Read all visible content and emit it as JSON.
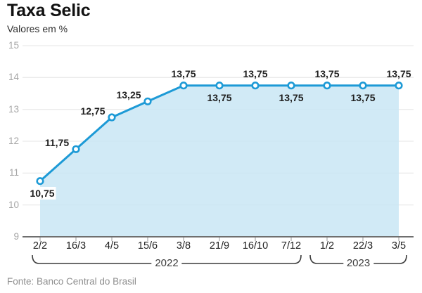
{
  "chart_data": {
    "type": "area",
    "title": "Taxa Selic",
    "subtitle": "Valores em %",
    "source": "Fonte: Banco Central do Brasil",
    "categories": [
      "2/2",
      "16/3",
      "4/5",
      "15/6",
      "3/8",
      "21/9",
      "16/10",
      "7/12",
      "1/2",
      "22/3",
      "3/5"
    ],
    "values": [
      10.75,
      11.75,
      12.75,
      13.25,
      13.75,
      13.75,
      13.75,
      13.75,
      13.75,
      13.75,
      13.75
    ],
    "point_labels": [
      "10,75",
      "11,75",
      "12,75",
      "13,25",
      "13,75",
      "13,75",
      "13,75",
      "13,75",
      "13,75",
      "13,75",
      "13,75"
    ],
    "point_label_positions": [
      "below-boxed",
      "above-left",
      "above-left",
      "above-left",
      "above",
      "below",
      "above",
      "below",
      "above",
      "below",
      "above"
    ],
    "ylabel": "",
    "xlabel": "",
    "ylim": [
      9,
      15
    ],
    "yticks": [
      15,
      14,
      13,
      12,
      11,
      10,
      9
    ],
    "grid": true,
    "legend_position": "none",
    "x_groups": [
      {
        "label": "2022",
        "from": 0,
        "to": 7
      },
      {
        "label": "2023",
        "from": 8,
        "to": 10
      }
    ],
    "colors": {
      "line": "#1d9ad6",
      "marker_fill": "#ffffff",
      "area": "#c9e6f4",
      "grid": "#e4e4e4",
      "axis": "#6f6f6f",
      "tick": "#9a9a9a",
      "bracket": "#3c3c3c",
      "title": "#111111",
      "subtitle": "#2e2e2e",
      "axis_label": "#a6a6a6",
      "category_label": "#222222",
      "point_label": "#1f1f1f",
      "year_label": "#3c3c3c",
      "source": "#8f8f8f"
    }
  }
}
